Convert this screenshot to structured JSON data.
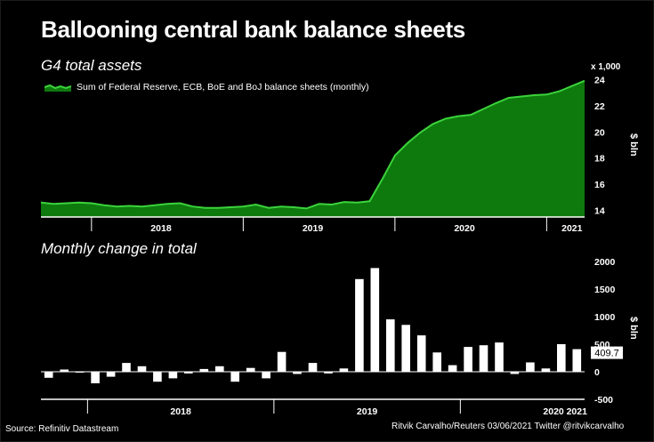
{
  "title": "Ballooning central bank balance sheets",
  "source": "Source: Refinitiv Datastream",
  "credit": "Ritvik Carvalho/Reuters 03/06/2021 Twitter @ritvikcarvalho",
  "colors": {
    "area_fill": "#0e7a0e",
    "area_line": "#3bd33b",
    "bar": "#ffffff",
    "background": "#000000"
  },
  "chart_data": [
    {
      "type": "area",
      "title": "G4 total assets",
      "legend": "Sum of Federal Reserve, ECB, BoE and BoJ balance sheets (monthly)",
      "legend_position": "top-left",
      "y_multiplier": "x 1,000",
      "ylabel": "$ bln",
      "ylim": [
        13.5,
        24.5
      ],
      "yticks": [
        14,
        16,
        18,
        20,
        22,
        24
      ],
      "x_year_labels": [
        "2018",
        "2019",
        "2020",
        "2021"
      ],
      "x_start": "2017-09",
      "values": [
        14.6,
        14.5,
        14.55,
        14.6,
        14.55,
        14.4,
        14.3,
        14.35,
        14.3,
        14.4,
        14.5,
        14.55,
        14.3,
        14.2,
        14.2,
        14.25,
        14.3,
        14.45,
        14.2,
        14.3,
        14.25,
        14.15,
        14.5,
        14.45,
        14.65,
        14.6,
        14.7,
        16.4,
        18.2,
        19.15,
        19.95,
        20.6,
        21.0,
        21.2,
        21.3,
        21.75,
        22.2,
        22.6,
        22.7,
        22.8,
        22.85,
        23.1,
        23.5,
        23.9
      ],
      "grid": false
    },
    {
      "type": "bar",
      "title": "Monthly change in total",
      "ylabel": "$ bln",
      "ylim": [
        -500,
        2000
      ],
      "yticks": [
        2000,
        1500,
        1000,
        500,
        0,
        -500
      ],
      "ytick_labels": [
        "2000",
        "1500",
        "1000",
        "500",
        "0",
        "-500"
      ],
      "x_year_labels": [
        "2018",
        "2019",
        "2020",
        "2021"
      ],
      "x_start": "2017-10",
      "values": [
        -110,
        40,
        0,
        -210,
        -90,
        160,
        100,
        -180,
        -120,
        -30,
        50,
        100,
        -180,
        70,
        -120,
        360,
        -40,
        160,
        -30,
        60,
        1680,
        1880,
        950,
        850,
        660,
        350,
        120,
        450,
        480,
        530,
        -40,
        170,
        60,
        500,
        409.7
      ],
      "annotation": "409.7",
      "grid": false
    }
  ]
}
